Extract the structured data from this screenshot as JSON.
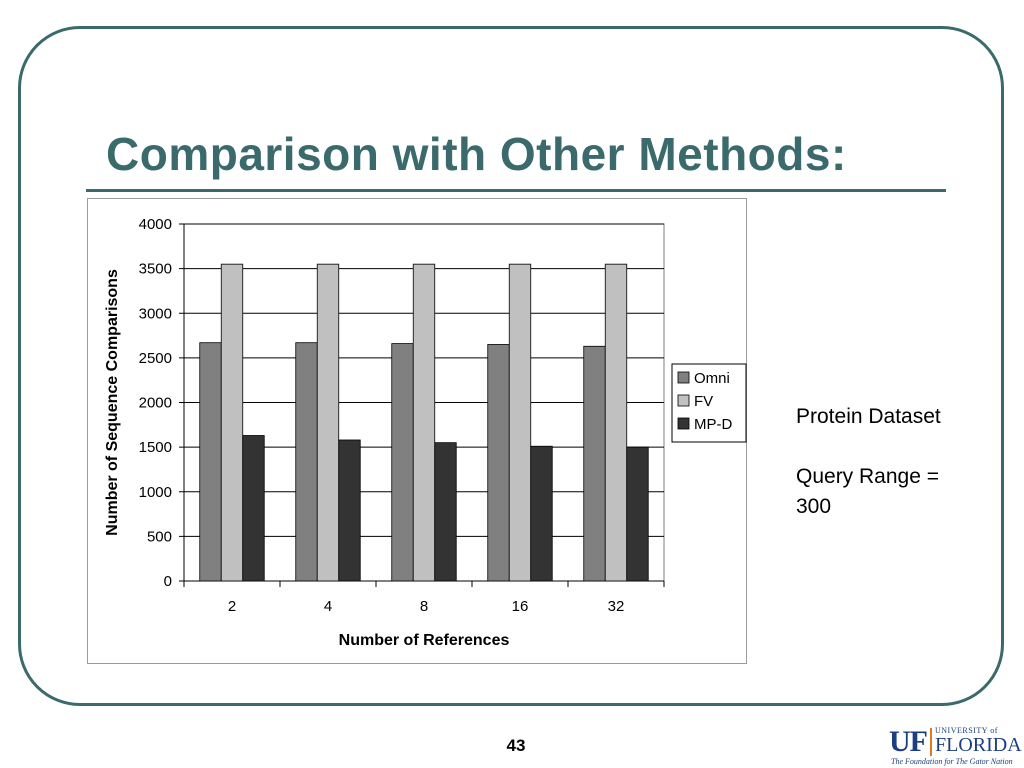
{
  "slide": {
    "title": "Comparison with Other Methods:",
    "note_line1": "Protein Dataset",
    "note_line2": "Query Range =",
    "note_line3": "300",
    "page_number": "43"
  },
  "logo": {
    "uf": "UF",
    "university_of": "UNIVERSITY of",
    "florida": "FLORIDA",
    "tagline": "The Foundation for The Gator Nation"
  },
  "chart_data": {
    "type": "bar",
    "xlabel": "Number of References",
    "ylabel": "Number of Sequence Comparisons",
    "categories": [
      "2",
      "4",
      "8",
      "16",
      "32"
    ],
    "ylim": [
      0,
      4000
    ],
    "yticks": [
      0,
      500,
      1000,
      1500,
      2000,
      2500,
      3000,
      3500,
      4000
    ],
    "grid": true,
    "legend_position": "right",
    "series": [
      {
        "name": "Omni",
        "color": "#808080",
        "values": [
          2670,
          2670,
          2660,
          2650,
          2630
        ]
      },
      {
        "name": "FV",
        "color": "#c0c0c0",
        "values": [
          3550,
          3550,
          3550,
          3550,
          3550
        ]
      },
      {
        "name": "MP-D",
        "color": "#333333",
        "values": [
          1630,
          1580,
          1550,
          1510,
          1500
        ]
      }
    ]
  }
}
